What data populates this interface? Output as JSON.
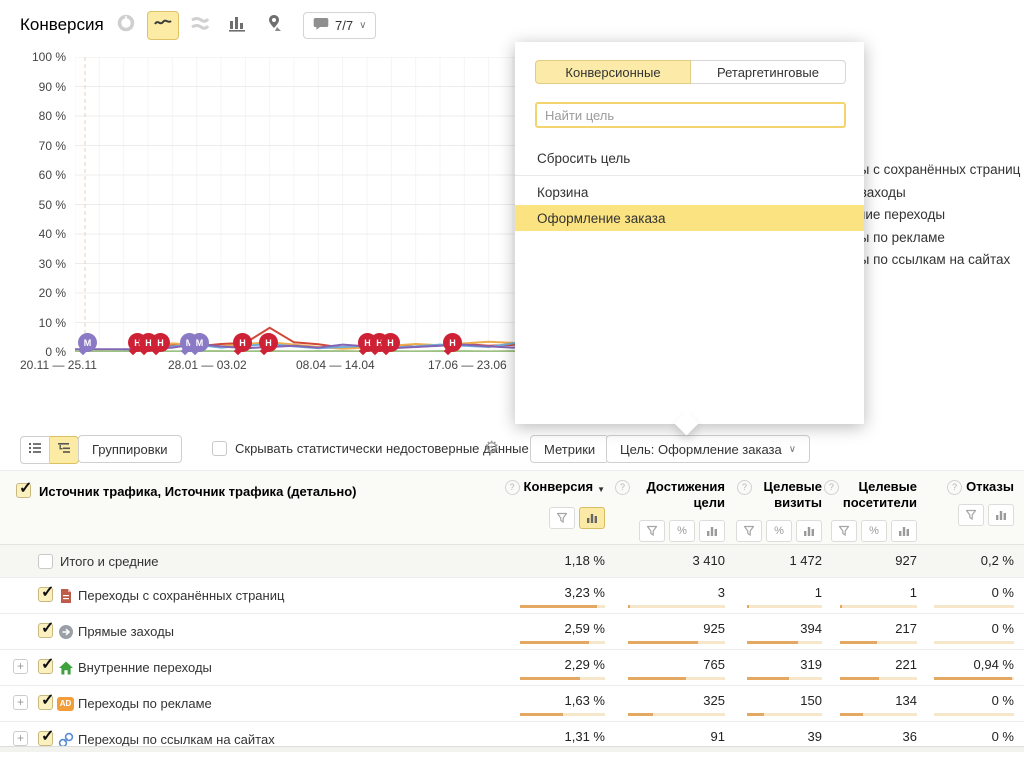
{
  "header": {
    "title": "Конверсия",
    "comments_badge": "7/7"
  },
  "popup": {
    "tabs": [
      {
        "label": "Конверсионные",
        "active": true
      },
      {
        "label": "Ретаргетинговые",
        "active": false
      }
    ],
    "search_placeholder": "Найти цель",
    "reset_label": "Сбросить цель",
    "goals": [
      {
        "label": "Корзина",
        "selected": false
      },
      {
        "label": "Оформление заказа",
        "selected": true
      }
    ]
  },
  "chart_data": {
    "type": "line",
    "title": "Конверсия",
    "ylim": [
      0,
      100
    ],
    "unit": "%",
    "grid": true,
    "legend_position": "right",
    "yticks": [
      "100 %",
      "90 %",
      "80 %",
      "70 %",
      "60 %",
      "50 %",
      "40 %",
      "30 %",
      "20 %",
      "10 %",
      "0 %"
    ],
    "xticks": [
      "20.11 — 25.11",
      "28.01 — 03.02",
      "08.04 — 14.04",
      "17.06 — 23.06"
    ],
    "series": [
      {
        "name": "Переходы с сохранённых страниц",
        "color": "#d14836",
        "values": [
          0.1,
          0.2,
          0.1,
          1.6,
          2.3,
          1.9,
          2.7,
          3.1,
          8.2,
          3.3,
          2.6,
          1.5,
          2.1,
          2.6,
          1.8,
          2.2,
          2.7,
          2.1,
          2.4,
          2.9,
          2.2,
          2.7,
          3.1,
          2.4,
          2.1,
          3.5,
          2.3,
          4.4,
          3.0,
          2.3,
          2.9
        ]
      },
      {
        "name": "Прямые заходы",
        "color": "#eead4c",
        "values": [
          0.1,
          0.2,
          0.2,
          0.9,
          2.9,
          2.3,
          1.9,
          2.7,
          3.3,
          2.5,
          1.7,
          1.1,
          1.5,
          2.1,
          2.7,
          2.3,
          2.9,
          3.5,
          3.1,
          2.7,
          3.7,
          4.1,
          3.3,
          2.5,
          1.9,
          2.5,
          2.1,
          1.7,
          2.5,
          2.1,
          3.1
        ]
      },
      {
        "name": "Внутренние переходы",
        "color": "#71aed9",
        "values": [
          0.1,
          0.1,
          0.3,
          1.3,
          1.9,
          2.5,
          1.5,
          2.1,
          2.7,
          1.9,
          1.3,
          1.7,
          2.1,
          1.5,
          1.9,
          2.5,
          2.1,
          1.7,
          2.9,
          3.5,
          2.7,
          2.1,
          1.7,
          2.7,
          1.3,
          1.9,
          1.5,
          2.3,
          1.9,
          1.5,
          2.3
        ]
      },
      {
        "name": "Переходы по рекламе",
        "color": "#8265b5",
        "values": [
          0.9,
          0.9,
          0.9,
          1.0,
          1.5,
          2.7,
          1.9,
          1.3,
          1.7,
          2.1,
          1.5,
          2.5,
          1.9,
          1.3,
          1.7,
          2.1,
          2.5,
          1.9,
          1.5,
          2.1,
          1.7,
          2.5,
          2.9,
          1.7,
          3.1,
          2.5,
          2.9,
          2.1,
          2.7,
          2.3,
          1.9
        ]
      },
      {
        "name": "Переходы по ссылкам на сайтах",
        "color": "#9dc183",
        "values": [
          0.2,
          0.3,
          0.2,
          0.3,
          0.2,
          0.3,
          0.3,
          0.2,
          0.3,
          0.2,
          0.3,
          0.3,
          0.2,
          0.3,
          0.2,
          0.3,
          0.3,
          0.2,
          0.3,
          0.2,
          0.3,
          0.3,
          0.2,
          0.3,
          0.2,
          0.3,
          0.3,
          0.2,
          0.3,
          0.2,
          0.3
        ]
      }
    ],
    "markers": [
      {
        "kind": "note",
        "letter": "M",
        "x": 87
      },
      {
        "kind": "note",
        "letter": "M",
        "x": 189
      },
      {
        "kind": "note",
        "letter": "M",
        "x": 199
      },
      {
        "kind": "goal",
        "letter": "H",
        "x": 137
      },
      {
        "kind": "goal",
        "letter": "H",
        "x": 148
      },
      {
        "kind": "goal",
        "letter": "H",
        "x": 160
      },
      {
        "kind": "goal",
        "letter": "H",
        "x": 242
      },
      {
        "kind": "goal",
        "letter": "H",
        "x": 268
      },
      {
        "kind": "goal",
        "letter": "H",
        "x": 367
      },
      {
        "kind": "goal",
        "letter": "H",
        "x": 379
      },
      {
        "kind": "goal",
        "letter": "H",
        "x": 390
      },
      {
        "kind": "goal",
        "letter": "H",
        "x": 452
      }
    ]
  },
  "controls": {
    "groupings_label": "Группировки",
    "hide_checkbox_label": "Скрывать статистически недостоверные данные",
    "metrics_label": "Метрики",
    "goal_button_label": "Цель: Оформление заказа"
  },
  "table": {
    "dimension_header": "Источник трафика, Источник трафика (детально)",
    "columns": [
      {
        "label": "Конверсия",
        "sorted": "desc"
      },
      {
        "label": "Достижения цели"
      },
      {
        "label": "Целевые визиты"
      },
      {
        "label": "Целевые посетители"
      },
      {
        "label": "Отказы"
      }
    ],
    "rows": [
      {
        "label": "Итого и средние",
        "checked": false,
        "values": [
          "1,18 %",
          "3 410",
          "1 472",
          "927",
          "0,2 %"
        ]
      },
      {
        "label": "Переходы с сохранённых страниц",
        "icon": "saved-page",
        "checked": true,
        "values": [
          "3,23 %",
          "3",
          "1",
          "1",
          "0 %"
        ],
        "bars": [
          90,
          2,
          2,
          2,
          0
        ]
      },
      {
        "label": "Прямые заходы",
        "icon": "direct",
        "checked": true,
        "values": [
          "2,59 %",
          "925",
          "394",
          "217",
          "0 %"
        ],
        "bars": [
          81,
          72,
          68,
          48,
          0
        ]
      },
      {
        "label": "Внутренние переходы",
        "icon": "internal",
        "checked": true,
        "expandable": true,
        "values": [
          "2,29 %",
          "765",
          "319",
          "221",
          "0,94 %"
        ],
        "bars": [
          71,
          60,
          56,
          50,
          97
        ]
      },
      {
        "label": "Переходы по рекламе",
        "icon": "ads",
        "checked": true,
        "expandable": true,
        "values": [
          "1,63 %",
          "325",
          "150",
          "134",
          "0 %"
        ],
        "bars": [
          50,
          26,
          23,
          30,
          0
        ]
      },
      {
        "label": "Переходы по ссылкам на сайтах",
        "icon": "links",
        "checked": true,
        "expandable": true,
        "values": [
          "1,31 %",
          "91",
          "39",
          "36",
          "0 %"
        ],
        "bars": [
          41,
          9,
          6,
          6,
          0
        ]
      }
    ]
  },
  "colors": {
    "accent_yellow": "#fceba4",
    "highlight_yellow": "#fbe381",
    "bar_fill": "#e3a963",
    "bar_track": "#f7e7ca",
    "goal_marker": "#cf2135",
    "note_marker": "#8a7ac6"
  }
}
